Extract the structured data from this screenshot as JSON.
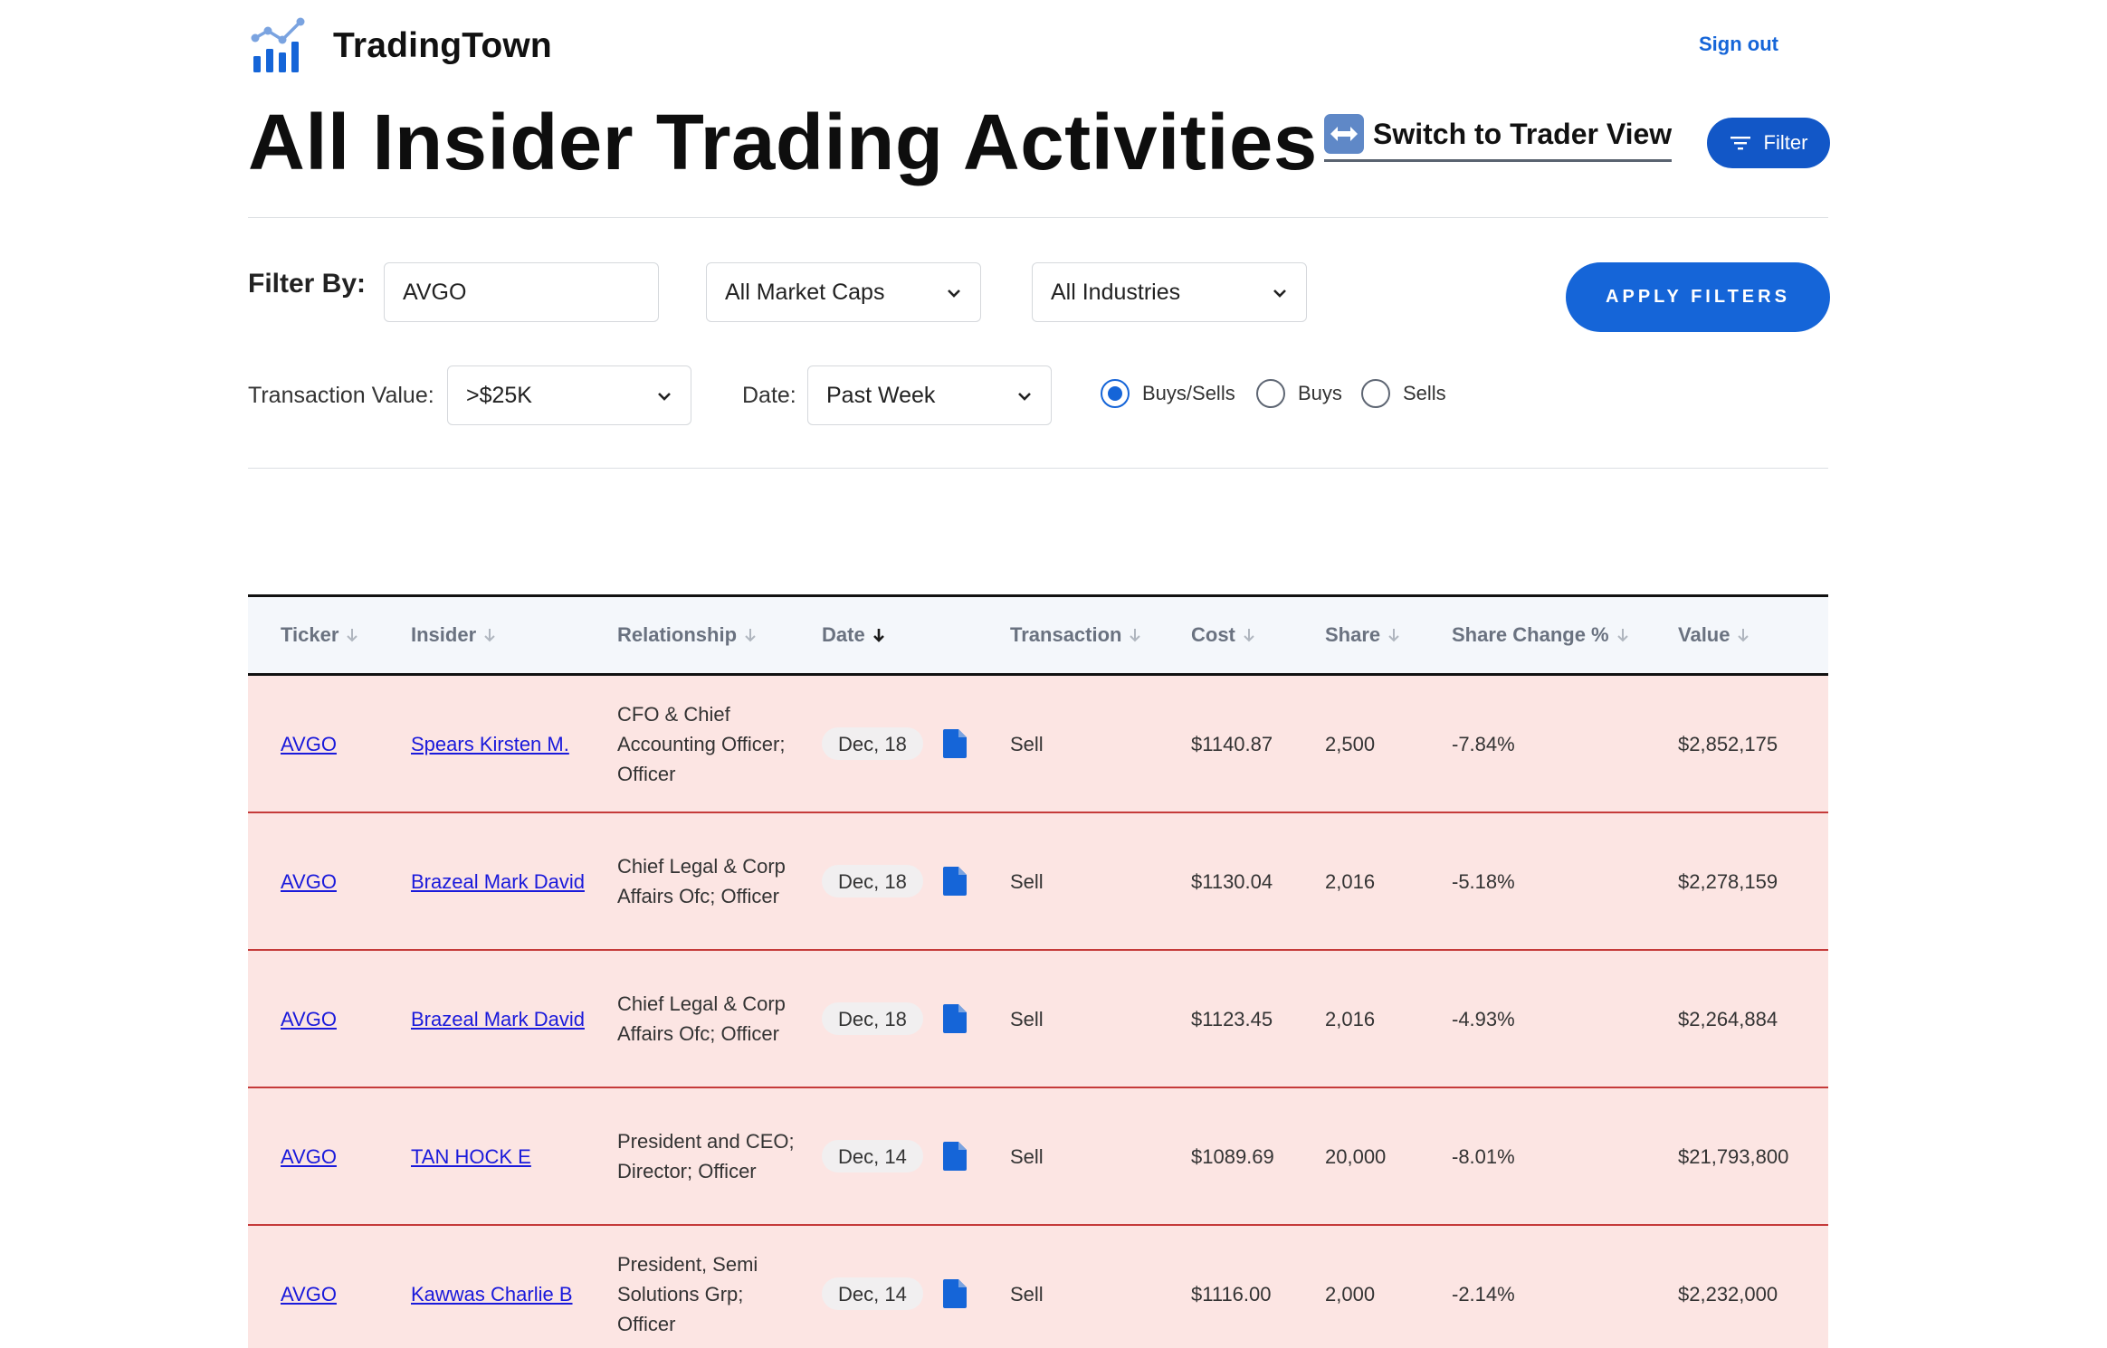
{
  "brand": {
    "name": "TradingTown"
  },
  "header": {
    "sign_out": "Sign out",
    "title": "All Insider Trading Activities",
    "switch_view": "Switch to Trader View",
    "filter_button": "Filter"
  },
  "filters": {
    "label": "Filter By:",
    "ticker_value": "AVGO",
    "market_cap": "All Market Caps",
    "industry": "All Industries",
    "apply": "APPLY FILTERS",
    "transaction_value_label": "Transaction Value:",
    "transaction_value": ">$25K",
    "date_label": "Date:",
    "date": "Past Week",
    "radio": [
      "Buys/Sells",
      "Buys",
      "Sells"
    ],
    "radio_selected": "Buys/Sells"
  },
  "table": {
    "columns": [
      "Ticker",
      "Insider",
      "Relationship",
      "Date",
      "Transaction",
      "Cost",
      "Share",
      "Share Change %",
      "Value"
    ],
    "sorted_column": "Date",
    "row_color": "#fce5e3",
    "rows": [
      {
        "ticker": "AVGO",
        "insider": "Spears Kirsten M.",
        "relationship": "CFO & Chief Accounting Officer; Officer",
        "date": "Dec, 18",
        "transaction": "Sell",
        "cost": "$1140.87",
        "share": "2,500",
        "change": "-7.84%",
        "value": "$2,852,175"
      },
      {
        "ticker": "AVGO",
        "insider": "Brazeal Mark David",
        "relationship": "Chief Legal & Corp Affairs Ofc; Officer",
        "date": "Dec, 18",
        "transaction": "Sell",
        "cost": "$1130.04",
        "share": "2,016",
        "change": "-5.18%",
        "value": "$2,278,159"
      },
      {
        "ticker": "AVGO",
        "insider": "Brazeal Mark David",
        "relationship": "Chief Legal & Corp Affairs Ofc; Officer",
        "date": "Dec, 18",
        "transaction": "Sell",
        "cost": "$1123.45",
        "share": "2,016",
        "change": "-4.93%",
        "value": "$2,264,884"
      },
      {
        "ticker": "AVGO",
        "insider": "TAN HOCK E",
        "relationship": "President and CEO; Director; Officer",
        "date": "Dec, 14",
        "transaction": "Sell",
        "cost": "$1089.69",
        "share": "20,000",
        "change": "-8.01%",
        "value": "$21,793,800"
      },
      {
        "ticker": "AVGO",
        "insider": "Kawwas Charlie B",
        "relationship": "President, Semi Solutions Grp; Officer",
        "date": "Dec, 14",
        "transaction": "Sell",
        "cost": "$1116.00",
        "share": "2,000",
        "change": "-2.14%",
        "value": "$2,232,000"
      }
    ]
  },
  "icons": {
    "logo": "bar-chart-trend-icon",
    "switch": "left-right-arrow-icon",
    "filter": "filter-lines-icon",
    "doc": "document-icon",
    "sort": "arrow-down-icon",
    "select": "chevron-down-icon"
  },
  "colors": {
    "accent": "#1565d8",
    "filter_button": "#1257c7",
    "row_border": "#c53a3a"
  }
}
